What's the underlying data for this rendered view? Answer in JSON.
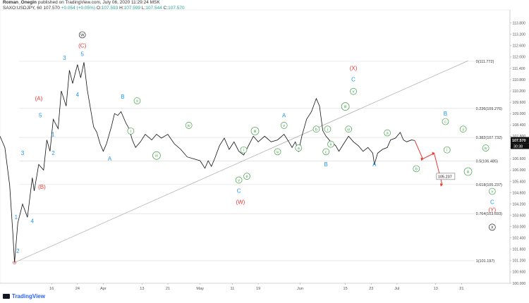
{
  "header": {
    "author": "Roman_Onegin",
    "published": "published on TradingView.com, July 06, 2020 11:29:24 MSK",
    "symbol": "SAXO:USDJPY, 60",
    "last": "107.570",
    "change": "+0.054 (+0.05%)",
    "o_label": "O:",
    "o": "107.593",
    "h_label": "H:",
    "h": "107.599",
    "l_label": "L:",
    "l": "107.544",
    "c_label": "C:",
    "c": "107.570"
  },
  "brand": "TradingView",
  "colors": {
    "up": "#26a69a",
    "down": "#ef5350",
    "blue": "#2196f3",
    "red": "#e53935",
    "green": "#43a047",
    "axis": "#555",
    "fib": "#b0b0b0"
  },
  "chart_data": {
    "type": "line",
    "instrument": "USD/JPY",
    "timeframe": "60",
    "y_range": [
      100.0,
      114.5
    ],
    "y_ticks": [
      100.0,
      100.6,
      101.2,
      101.8,
      102.4,
      103.0,
      103.6,
      104.2,
      104.8,
      105.4,
      106.0,
      106.6,
      107.2,
      107.8,
      108.4,
      109.0,
      109.6,
      110.2,
      110.8,
      111.4,
      112.0,
      112.6,
      113.2,
      113.8
    ],
    "y_tick_labels": [
      "100.000",
      "100.600",
      "101.200",
      "101.800",
      "102.400",
      "103.000",
      "103.600",
      "104.200",
      "104.800",
      "105.400",
      "106.000",
      "106.600",
      "107.200",
      "107.800",
      "108.400",
      "109.000",
      "109.600",
      "110.200",
      "110.800",
      "111.400",
      "112.000",
      "112.600",
      "113.200",
      "113.800"
    ],
    "last_price_label": "107.570",
    "countdown_label": "30:38",
    "x_ticks": [
      {
        "day": 16,
        "label": "16"
      },
      {
        "day": 24,
        "label": "24"
      },
      {
        "day": 32,
        "label": "Apr"
      },
      {
        "day": 44,
        "label": "13"
      },
      {
        "day": 52,
        "label": "21"
      },
      {
        "day": 62,
        "label": "May"
      },
      {
        "day": 72,
        "label": "11"
      },
      {
        "day": 80,
        "label": "19"
      },
      {
        "day": 93,
        "label": "Jun"
      },
      {
        "day": 107,
        "label": "15"
      },
      {
        "day": 115,
        "label": "23"
      },
      {
        "day": 123,
        "label": "Jul"
      },
      {
        "day": 135,
        "label": "13"
      },
      {
        "day": 143,
        "label": "21"
      }
    ],
    "price_path": [
      [
        0,
        107.8
      ],
      [
        1.5,
        107.2
      ],
      [
        3,
        105.2
      ],
      [
        4,
        102.6
      ],
      [
        4.5,
        101.1
      ],
      [
        5.5,
        103.2
      ],
      [
        7,
        104.2
      ],
      [
        8.5,
        103.5
      ],
      [
        10,
        105.6
      ],
      [
        10.6,
        104.9
      ],
      [
        12,
        106.3
      ],
      [
        13.5,
        106.0
      ],
      [
        14.5,
        107.6
      ],
      [
        15.5,
        107.0
      ],
      [
        16.5,
        108.7
      ],
      [
        18,
        108.2
      ],
      [
        19,
        110.2
      ],
      [
        20.5,
        109.4
      ],
      [
        21.5,
        111.3
      ],
      [
        22.5,
        110.6
      ],
      [
        24,
        111.6
      ],
      [
        25,
        110.9
      ],
      [
        26,
        111.72
      ],
      [
        27,
        110.3
      ],
      [
        28,
        109.3
      ],
      [
        29,
        108.3
      ],
      [
        30,
        108.0
      ],
      [
        31,
        107.4
      ],
      [
        32,
        107.0
      ],
      [
        33,
        107.4
      ],
      [
        34.5,
        108.3
      ],
      [
        35.5,
        109.0
      ],
      [
        36.5,
        108.9
      ],
      [
        37.5,
        109.1
      ],
      [
        39,
        108.5
      ],
      [
        40,
        108.2
      ],
      [
        41,
        107.6
      ],
      [
        42,
        107.2
      ],
      [
        43.5,
        107.5
      ],
      [
        45,
        107.9
      ],
      [
        47,
        107.6
      ],
      [
        48.5,
        107.9
      ],
      [
        50,
        107.7
      ],
      [
        52,
        107.9
      ],
      [
        54,
        107.4
      ],
      [
        56,
        107.1
      ],
      [
        58,
        106.7
      ],
      [
        60,
        106.6
      ],
      [
        62,
        106.5
      ],
      [
        63.5,
        106.1
      ],
      [
        64.5,
        106.5
      ],
      [
        65.5,
        106.2
      ],
      [
        66.5,
        106.6
      ],
      [
        68,
        107.3
      ],
      [
        69.5,
        107.7
      ],
      [
        71,
        107.1
      ],
      [
        72.5,
        107.5
      ],
      [
        74,
        107.0
      ],
      [
        75.5,
        106.8
      ],
      [
        77,
        107.3
      ],
      [
        78.5,
        107.8
      ],
      [
        80,
        107.5
      ],
      [
        82,
        107.8
      ],
      [
        84,
        107.5
      ],
      [
        86,
        107.6
      ],
      [
        88,
        107.9
      ],
      [
        89.5,
        107.5
      ],
      [
        90.5,
        107.2
      ],
      [
        91.5,
        107.5
      ],
      [
        92.5,
        107.0
      ],
      [
        93.5,
        107.8
      ],
      [
        95,
        108.7
      ],
      [
        96.5,
        109.1
      ],
      [
        98,
        109.8
      ],
      [
        99,
        109.4
      ],
      [
        100,
        108.1
      ],
      [
        101,
        107.8
      ],
      [
        102.5,
        107.5
      ],
      [
        104,
        107.3
      ],
      [
        105,
        107.0
      ],
      [
        106.5,
        107.4
      ],
      [
        108,
        107.8
      ],
      [
        109.5,
        107.5
      ],
      [
        111,
        107.3
      ],
      [
        112.5,
        107.0
      ],
      [
        114,
        107.2
      ],
      [
        115.5,
        106.9
      ],
      [
        116,
        106.3
      ],
      [
        117,
        106.9
      ],
      [
        118.5,
        107.1
      ],
      [
        120,
        107.2
      ],
      [
        121,
        107.6
      ],
      [
        122.5,
        107.7
      ],
      [
        124,
        108.0
      ],
      [
        125,
        107.6
      ],
      [
        126,
        107.5
      ],
      [
        127.5,
        107.6
      ],
      [
        128.5,
        107.57
      ]
    ],
    "projection": [
      [
        128.5,
        107.57
      ],
      [
        131,
        106.6
      ],
      [
        134.5,
        106.9
      ],
      [
        137,
        105.237
      ]
    ],
    "projection_label": "105.237",
    "fib_levels": [
      {
        "label": "0(111.772)",
        "price": 111.772
      },
      {
        "label": "0.236(109.276)",
        "price": 109.276
      },
      {
        "label": "0.382(107.732)",
        "price": 107.732
      },
      {
        "label": "0.5(106.485)",
        "price": 106.485
      },
      {
        "label": "0.618(105.237)",
        "price": 105.237
      },
      {
        "label": "0.764(103.693)",
        "price": 103.693
      },
      {
        "label": "1(101.197)",
        "price": 101.197
      }
    ],
    "trendline": [
      [
        4.5,
        101.1
      ],
      [
        145,
        111.8
      ]
    ],
    "wave_labels": [
      {
        "t": "W",
        "day": 25.5,
        "price": 113.1,
        "c": "black",
        "circle": true
      },
      {
        "t": "(C)",
        "day": 25.5,
        "price": 112.5,
        "c": "red"
      },
      {
        "t": "3",
        "day": 20,
        "price": 111.85,
        "c": "blue"
      },
      {
        "t": "5",
        "day": 25.5,
        "price": 112.05,
        "c": "blue"
      },
      {
        "t": "4",
        "day": 24,
        "price": 109.9,
        "c": "blue"
      },
      {
        "t": "(A)",
        "day": 12,
        "price": 109.7,
        "c": "red"
      },
      {
        "t": "5",
        "day": 12.5,
        "price": 108.8,
        "c": "blue"
      },
      {
        "t": "1",
        "day": 16.5,
        "price": 107.8,
        "c": "blue"
      },
      {
        "t": "2",
        "day": 16.5,
        "price": 106.8,
        "c": "blue"
      },
      {
        "t": "3",
        "day": 7,
        "price": 106.8,
        "c": "blue"
      },
      {
        "t": "(B)",
        "day": 13,
        "price": 105.0,
        "c": "red"
      },
      {
        "t": "4",
        "day": 10,
        "price": 103.2,
        "c": "blue"
      },
      {
        "t": "1",
        "day": 5,
        "price": 103.4,
        "c": "blue"
      },
      {
        "t": "2",
        "day": 5.5,
        "price": 101.6,
        "c": "blue"
      },
      {
        "t": "B",
        "day": 38,
        "price": 109.8,
        "c": "blue"
      },
      {
        "t": "ii",
        "day": 42.5,
        "price": 109.6,
        "c": "green",
        "circle": true
      },
      {
        "t": "i",
        "day": 40.5,
        "price": 108.0,
        "c": "green",
        "circle": true
      },
      {
        "t": "iii",
        "day": 48.5,
        "price": 106.7,
        "c": "green",
        "circle": true
      },
      {
        "t": "iv",
        "day": 58.5,
        "price": 108.3,
        "c": "green",
        "circle": true
      },
      {
        "t": "A",
        "day": 34,
        "price": 106.5,
        "c": "blue"
      },
      {
        "t": "i",
        "day": 75.5,
        "price": 107.0,
        "c": "green",
        "circle": true
      },
      {
        "t": "ii",
        "day": 76.5,
        "price": 105.6,
        "c": "green",
        "circle": true
      },
      {
        "t": "v",
        "day": 74,
        "price": 105.4,
        "c": "green",
        "circle": true
      },
      {
        "t": "C",
        "day": 74,
        "price": 104.8,
        "c": "blue"
      },
      {
        "t": "(W)",
        "day": 74.5,
        "price": 104.2,
        "c": "red"
      },
      {
        "t": "iii",
        "day": 79,
        "price": 108.0,
        "c": "green",
        "circle": true
      },
      {
        "t": "iv",
        "day": 86,
        "price": 106.9,
        "c": "green",
        "circle": true
      },
      {
        "t": "A",
        "day": 88,
        "price": 108.8,
        "c": "blue"
      },
      {
        "t": "v",
        "day": 88,
        "price": 108.3,
        "c": "green",
        "circle": true
      },
      {
        "t": "a",
        "day": 92.5,
        "price": 107.1,
        "c": "green",
        "circle": true
      },
      {
        "t": "b",
        "day": 98,
        "price": 108.1,
        "c": "green",
        "circle": true
      },
      {
        "t": "i",
        "day": 101.5,
        "price": 108.1,
        "c": "green",
        "circle": true
      },
      {
        "t": "c",
        "day": 101,
        "price": 106.9,
        "c": "green",
        "circle": true
      },
      {
        "t": "ii",
        "day": 102.5,
        "price": 107.3,
        "c": "green",
        "circle": true
      },
      {
        "t": "B",
        "day": 101,
        "price": 106.2,
        "c": "blue"
      },
      {
        "t": "iii",
        "day": 107,
        "price": 109.3,
        "c": "green",
        "circle": true
      },
      {
        "t": "iv",
        "day": 108,
        "price": 108.1,
        "c": "green",
        "circle": true
      },
      {
        "t": "v",
        "day": 109.5,
        "price": 110.1,
        "c": "green",
        "circle": true
      },
      {
        "t": "C",
        "day": 109.5,
        "price": 110.7,
        "c": "blue"
      },
      {
        "t": "(X)",
        "day": 109.5,
        "price": 111.3,
        "c": "red"
      },
      {
        "t": "A",
        "day": 116,
        "price": 106.2,
        "c": "blue"
      },
      {
        "t": "a",
        "day": 120,
        "price": 107.9,
        "c": "green",
        "circle": true
      },
      {
        "t": "b",
        "day": 129,
        "price": 106.0,
        "c": "green",
        "circle": true
      },
      {
        "t": "B",
        "day": 138,
        "price": 108.9,
        "c": "blue"
      },
      {
        "t": "c",
        "day": 138,
        "price": 108.5,
        "c": "green",
        "circle": true
      },
      {
        "t": "i",
        "day": 138.5,
        "price": 107.0,
        "c": "green",
        "circle": true
      },
      {
        "t": "ii",
        "day": 143.5,
        "price": 108.1,
        "c": "green",
        "circle": true
      },
      {
        "t": "iv",
        "day": 150.5,
        "price": 107.1,
        "c": "green",
        "circle": true
      },
      {
        "t": "iii",
        "day": 145,
        "price": 105.85,
        "c": "green",
        "circle": true
      },
      {
        "t": "v",
        "day": 152.5,
        "price": 104.8,
        "c": "green",
        "circle": true
      },
      {
        "t": "C",
        "day": 152.5,
        "price": 104.2,
        "c": "blue"
      },
      {
        "t": "(Y)",
        "day": 152.5,
        "price": 103.8,
        "c": "red"
      },
      {
        "t": "X",
        "day": 152.5,
        "price": 102.9,
        "c": "black",
        "circle": true
      }
    ]
  }
}
